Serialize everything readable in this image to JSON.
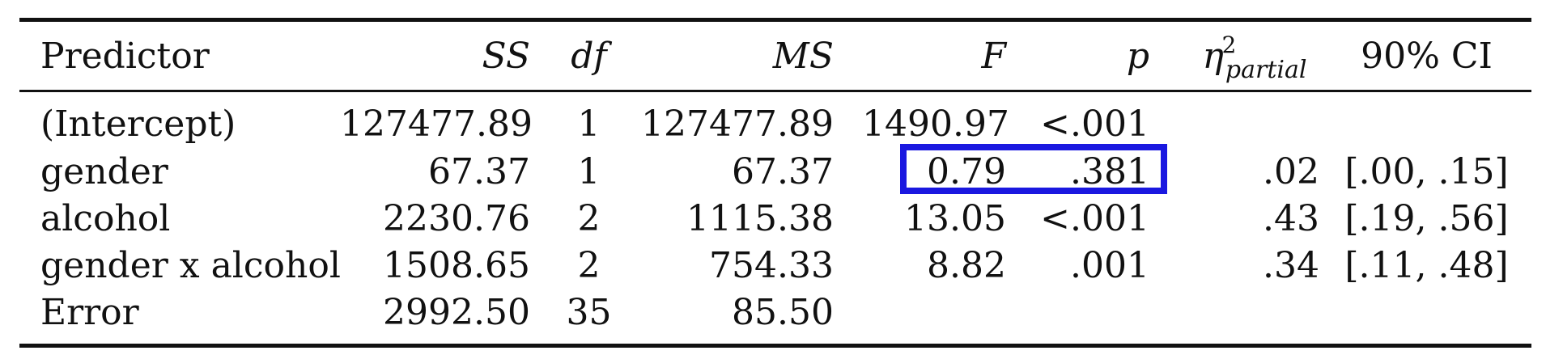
{
  "table": {
    "headers": {
      "predictor": "Predictor",
      "ss": "SS",
      "df": "df",
      "ms": "MS",
      "f": "F",
      "p": "p",
      "eta_symbol": "η",
      "eta_superscript": "2",
      "eta_subscript": "partial",
      "ci": "90% CI"
    },
    "rows": [
      {
        "predictor": "(Intercept)",
        "ss": "127477.89",
        "df": "1",
        "ms": "127477.89",
        "f": "1490.97",
        "p": "<.001",
        "eta": "",
        "ci": ""
      },
      {
        "predictor": "gender",
        "ss": "67.37",
        "df": "1",
        "ms": "67.37",
        "f": "0.79",
        "p": ".381",
        "eta": ".02",
        "ci": "[.00, .15]"
      },
      {
        "predictor": "alcohol",
        "ss": "2230.76",
        "df": "2",
        "ms": "1115.38",
        "f": "13.05",
        "p": "<.001",
        "eta": ".43",
        "ci": "[.19, .56]"
      },
      {
        "predictor": "gender x alcohol",
        "ss": "1508.65",
        "df": "2",
        "ms": "754.33",
        "f": "8.82",
        "p": ".001",
        "eta": ".34",
        "ci": "[.11, .48]"
      },
      {
        "predictor": "Error",
        "ss": "2992.50",
        "df": "35",
        "ms": "85.50",
        "f": "",
        "p": "",
        "eta": "",
        "ci": ""
      }
    ]
  },
  "highlight": {
    "color": "#1a18e0",
    "row": 1,
    "columns": [
      "f",
      "p"
    ]
  }
}
